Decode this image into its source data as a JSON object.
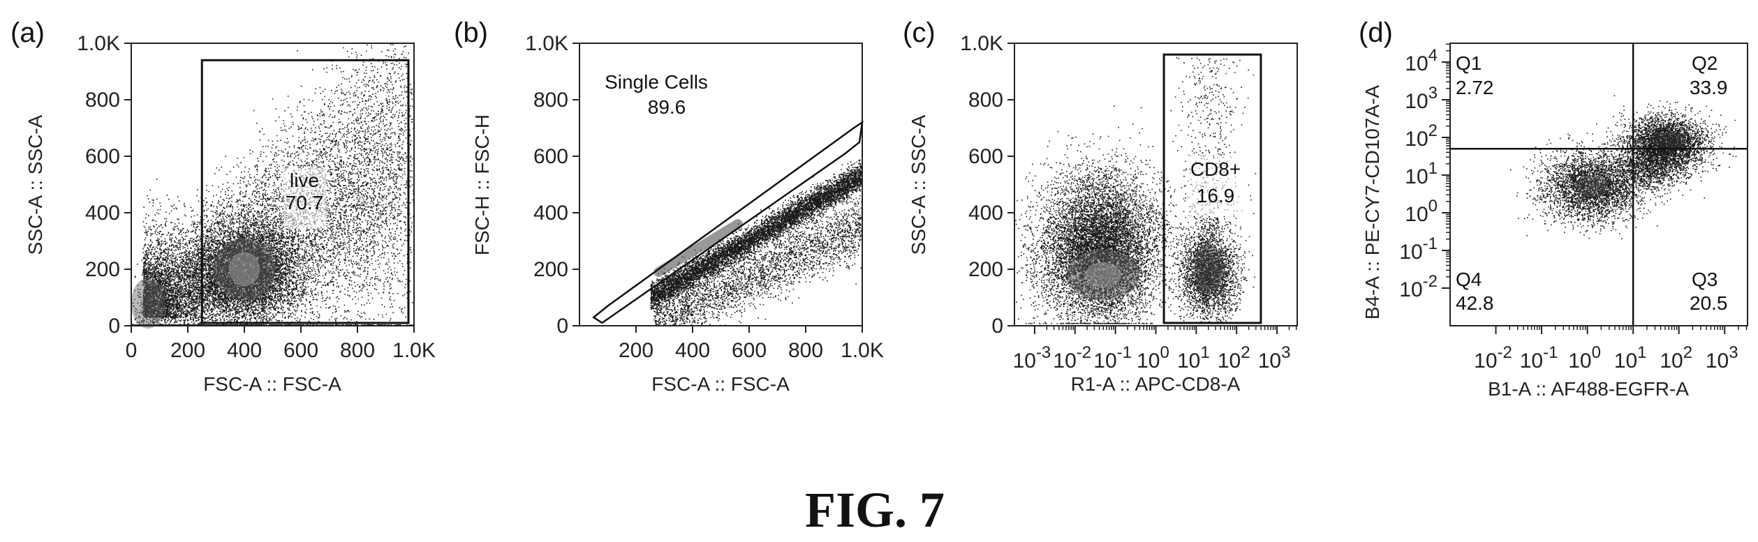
{
  "figure_label": "FIG. 7",
  "chart_data": [
    {
      "type": "scatter",
      "panel_label": "(a)",
      "xlabel": "FSC-A :: FSC-A",
      "ylabel": "SSC-A :: SSC-A",
      "xlim": [
        0,
        1000
      ],
      "ylim": [
        0,
        1000
      ],
      "xticks": [
        "0",
        "200",
        "400",
        "600",
        "800",
        "1.0K"
      ],
      "yticks": [
        "0",
        "200",
        "400",
        "600",
        "800",
        "1.0K"
      ],
      "gate": {
        "label": "live",
        "value": "70.7",
        "x": [
          250,
          1000
        ],
        "y": [
          10,
          940
        ]
      }
    },
    {
      "type": "scatter",
      "panel_label": "(b)",
      "xlabel": "FSC-A :: FSC-A",
      "ylabel": "FSC-H :: FSC-H",
      "xlim": [
        0,
        1000
      ],
      "ylim": [
        0,
        1000
      ],
      "xticks": [
        "200",
        "400",
        "600",
        "800",
        "1.0K"
      ],
      "yticks": [
        "0",
        "200",
        "400",
        "600",
        "800",
        "1.0K"
      ],
      "gate": {
        "label": "Single Cells",
        "value": "89.6",
        "polygon": [
          [
            50,
            30
          ],
          [
            100,
            70
          ],
          [
            970,
            700
          ],
          [
            1000,
            720
          ],
          [
            990,
            650
          ],
          [
            940,
            610
          ],
          [
            80,
            10
          ]
        ]
      }
    },
    {
      "type": "scatter",
      "panel_label": "(c)",
      "xlabel": "R1-A :: APC-CD8-A",
      "ylabel": "SSC-A :: SSC-A",
      "xscale": "log",
      "xlim": [
        -3.5,
        3.5
      ],
      "ylim": [
        0,
        1000
      ],
      "xticks": [
        "10 -3",
        "10 -2",
        "10 -1",
        "10 0",
        "10 1",
        "10 2",
        "10 3"
      ],
      "yticks": [
        "0",
        "200",
        "400",
        "600",
        "800",
        "1.0K"
      ],
      "gate": {
        "label": "CD8+",
        "value": "16.9",
        "x": [
          0.2,
          2.6
        ],
        "y": [
          10,
          960
        ]
      }
    },
    {
      "type": "scatter",
      "panel_label": "(d)",
      "xlabel": "B1-A :: AF488-EGFR-A",
      "ylabel": "B4-A :: PE-CY7-CD107A-A",
      "xscale": "log",
      "yscale": "log",
      "xlim": [
        -3,
        3.5
      ],
      "ylim": [
        -3,
        4.5
      ],
      "xticks": [
        "10 -2",
        "10 -1",
        "10 0",
        "10 1",
        "10 2",
        "10 3"
      ],
      "yticks": [
        "10 -2",
        "10 -1",
        "10 0",
        "10 1",
        "10 2",
        "10 3",
        "10 4"
      ],
      "quadrant_split": {
        "x": 1.0,
        "y": 1.7
      },
      "quadrants": [
        {
          "name": "Q1",
          "value": "2.72"
        },
        {
          "name": "Q2",
          "value": "33.9"
        },
        {
          "name": "Q3",
          "value": "20.5"
        },
        {
          "name": "Q4",
          "value": "42.8"
        }
      ]
    }
  ]
}
